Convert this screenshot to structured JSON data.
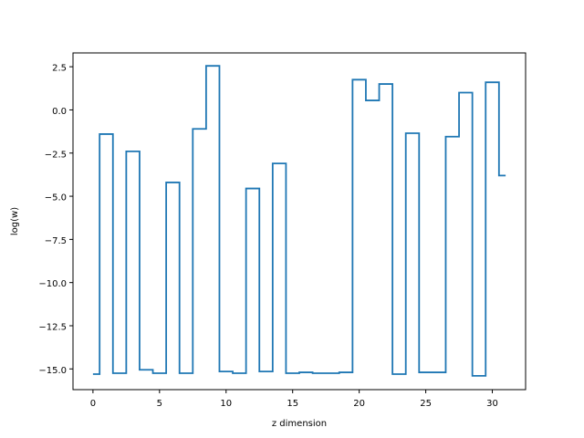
{
  "chart_data": {
    "type": "line",
    "drawstyle": "steps-mid",
    "title": "",
    "xlabel": "z dimension",
    "ylabel": "log(w)",
    "xlim": [
      -1.5,
      32.5
    ],
    "ylim": [
      -16.2,
      3.3
    ],
    "xticks": [
      0,
      5,
      10,
      15,
      20,
      25,
      30
    ],
    "yticks": [
      2.5,
      0.0,
      -2.5,
      -5.0,
      -7.5,
      -10.0,
      -12.5,
      -15.0
    ],
    "ytick_labels": [
      "2.5",
      "0.0",
      "−2.5",
      "−5.0",
      "−7.5",
      "−10.0",
      "−12.5",
      "−15.0"
    ],
    "grid": false,
    "series": [
      {
        "color": "#1f77b4",
        "x": [
          0,
          1,
          2,
          3,
          4,
          5,
          6,
          7,
          8,
          9,
          10,
          11,
          12,
          13,
          14,
          15,
          16,
          17,
          18,
          19,
          20,
          21,
          22,
          23,
          24,
          25,
          26,
          27,
          28,
          29,
          30,
          31
        ],
        "values": [
          -15.3,
          -1.4,
          -15.25,
          -2.4,
          -15.05,
          -15.25,
          -4.2,
          -15.25,
          -1.1,
          2.55,
          -15.15,
          -15.25,
          -4.55,
          -15.15,
          -3.1,
          -15.25,
          -15.2,
          -15.25,
          -15.25,
          -15.2,
          1.75,
          0.55,
          1.5,
          -15.3,
          -1.35,
          -15.2,
          -15.2,
          -1.55,
          1.0,
          -15.4,
          1.6,
          -3.8
        ]
      }
    ]
  }
}
